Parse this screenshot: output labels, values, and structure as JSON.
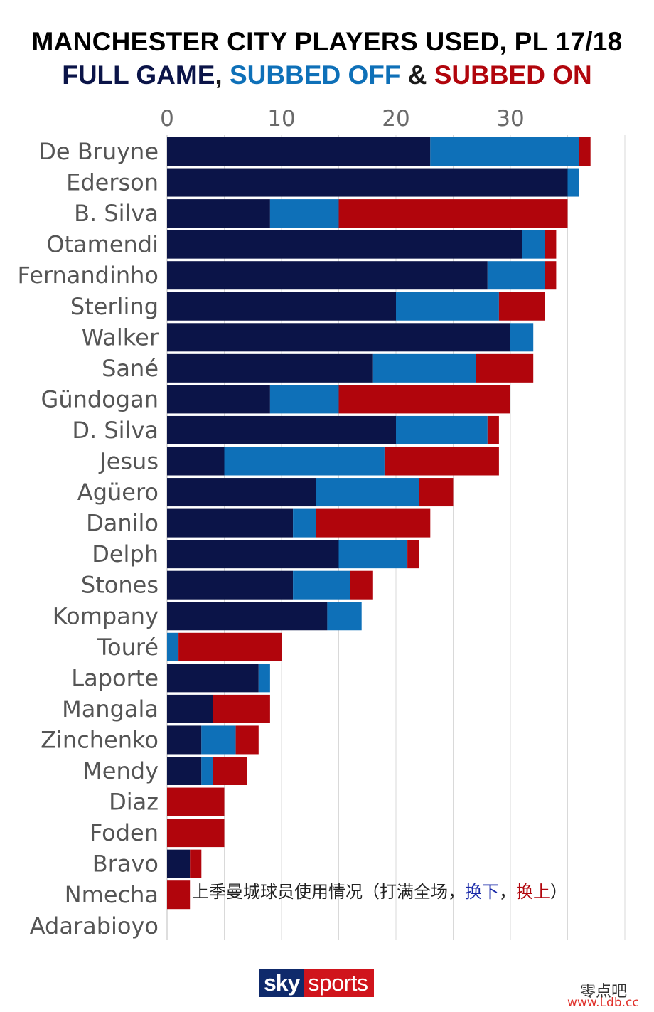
{
  "title": "MANCHESTER CITY PLAYERS USED, PL 17/18",
  "subtitle": {
    "full": "FULL GAME",
    "sep1": ", ",
    "off": "SUBBED OFF",
    "sep2": " & ",
    "on": "SUBBED ON"
  },
  "colors": {
    "full": "#0b1448",
    "off": "#0e70b8",
    "on": "#b1050c",
    "grid": "#d9d9d9",
    "label": "#555555"
  },
  "chart_data": {
    "type": "bar",
    "orientation": "horizontal",
    "stacked": true,
    "title": "MANCHESTER CITY PLAYERS USED, PL 17/18",
    "xlim": [
      0,
      40
    ],
    "xticks": [
      0,
      10,
      20,
      30
    ],
    "xtick_position": "top",
    "grid": true,
    "categories": [
      "De Bruyne",
      "Ederson",
      "B. Silva",
      "Otamendi",
      "Fernandinho",
      "Sterling",
      "Walker",
      "Sané",
      "Gündogan",
      "D. Silva",
      "Jesus",
      "Agüero",
      "Danilo",
      "Delph",
      "Stones",
      "Kompany",
      "Touré",
      "Laporte",
      "Mangala",
      "Zinchenko",
      "Mendy",
      "Diaz",
      "Foden",
      "Bravo",
      "Nmecha",
      "Adarabioyo"
    ],
    "series": [
      {
        "name": "FULL GAME",
        "values": [
          23,
          35,
          9,
          31,
          28,
          20,
          30,
          18,
          9,
          20,
          5,
          13,
          11,
          15,
          11,
          14,
          0,
          8,
          4,
          3,
          3,
          0,
          0,
          2,
          0,
          0
        ]
      },
      {
        "name": "SUBBED OFF",
        "values": [
          13,
          1,
          6,
          2,
          5,
          9,
          2,
          9,
          6,
          8,
          14,
          9,
          2,
          6,
          5,
          3,
          1,
          1,
          0,
          3,
          1,
          0,
          0,
          0,
          0,
          0
        ]
      },
      {
        "name": "SUBBED ON",
        "values": [
          1,
          0,
          20,
          1,
          1,
          4,
          0,
          5,
          15,
          1,
          10,
          3,
          10,
          1,
          2,
          0,
          9,
          0,
          5,
          2,
          3,
          5,
          5,
          1,
          2,
          0
        ]
      }
    ]
  },
  "logo": {
    "sky": "sky",
    "sports": "sports"
  },
  "caption": {
    "main": "上季曼城球员使用情况（打满全场，",
    "off": "换下",
    "sep": "，",
    "on": "换上",
    "end": "）"
  },
  "watermark": {
    "line1": "零点吧",
    "line2": "www.Ldb.cc"
  }
}
